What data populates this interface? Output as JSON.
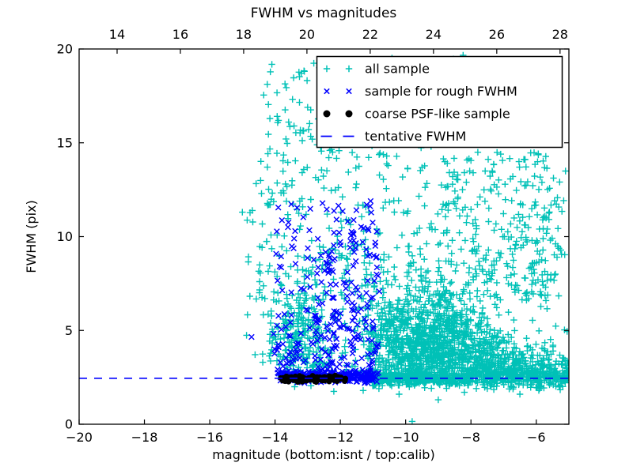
{
  "title": "FWHM vs magnitudes",
  "axes": {
    "xlabel": "magnitude (bottom:isnt / top:calib)",
    "ylabel": "FWHM (pix)",
    "x_ticks": [
      "−20",
      "−18",
      "−16",
      "−14",
      "−12",
      "−10",
      "−8",
      "−6"
    ],
    "x_tick_values": [
      -20,
      -18,
      -16,
      -14,
      -12,
      -10,
      -8,
      -6
    ],
    "top_ticks": [
      "14",
      "16",
      "18",
      "20",
      "22",
      "24",
      "26",
      "28"
    ],
    "top_tick_values": [
      14,
      16,
      18,
      20,
      22,
      24,
      26,
      28
    ],
    "toplim": [
      12.8,
      28.28
    ],
    "y_ticks": [
      "0",
      "5",
      "10",
      "15",
      "20"
    ],
    "y_tick_values": [
      0,
      5,
      10,
      15,
      20
    ]
  },
  "legend": {
    "entries": [
      {
        "label": "all sample",
        "marker": "plus",
        "color": "#00C1B7"
      },
      {
        "label": "sample for rough FWHM",
        "marker": "x",
        "color": "#0000FF"
      },
      {
        "label": "coarse PSF-like sample",
        "marker": "dot",
        "color": "#000000"
      },
      {
        "label": "tentative FWHM",
        "marker": "dashed-line",
        "color": "#0000FF"
      }
    ]
  },
  "colors": {
    "cyan": "#00C1B7",
    "blue": "#0000FF",
    "black": "#000000",
    "axis": "#000000",
    "background": "#FFFFFF"
  },
  "chart_data": {
    "type": "scatter",
    "title": "FWHM vs magnitudes",
    "xlabel": "magnitude (bottom:isnt / top:calib)",
    "ylabel": "FWHM (pix)",
    "xlim": [
      -20,
      -5
    ],
    "ylim": [
      0,
      20
    ],
    "top_axis_lim": [
      12.8,
      28.28
    ],
    "grid": false,
    "legend_position": "upper right",
    "tentative_fwhm": 2.45,
    "series": [
      {
        "name": "all sample",
        "marker": "plus",
        "color": "#00C1B7",
        "approx_count": 3300,
        "clusters": [
          {
            "kind": "box",
            "n": 90,
            "x": [
              -14.6,
              -7.2
            ],
            "y": [
              14.5,
              19.9
            ]
          },
          {
            "kind": "box",
            "n": 200,
            "x": [
              -14.6,
              -5.1
            ],
            "y": [
              9.5,
              14.5
            ]
          },
          {
            "kind": "box",
            "n": 260,
            "x": [
              -14.6,
              -5.05
            ],
            "y": [
              6.5,
              9.5
            ]
          },
          {
            "kind": "box",
            "n": 40,
            "x": [
              -14.3,
              -12.6
            ],
            "y": [
              9.0,
              19.5
            ]
          },
          {
            "kind": "box",
            "n": 10,
            "x": [
              -15.1,
              -14.6
            ],
            "y": [
              3.0,
              11.5
            ]
          },
          {
            "kind": "gauss",
            "n": 950,
            "cx": -9.4,
            "cy": 4.3,
            "sx": 1.15,
            "sy": 1.4,
            "clipx": [
              -12.2,
              -5.05
            ],
            "clipy": [
              2.55,
              12
            ]
          },
          {
            "kind": "gauss",
            "n": 330,
            "cx": -8.0,
            "cy": 3.3,
            "sx": 1.3,
            "sy": 0.9,
            "clipx": [
              -11.0,
              -5.05
            ],
            "clipy": [
              2.5,
              8
            ]
          },
          {
            "kind": "gauss",
            "n": 260,
            "cx": -13.25,
            "cy": 4.3,
            "sx": 0.55,
            "sy": 1.4,
            "clipx": [
              -14.4,
              -12.2
            ],
            "clipy": [
              2.55,
              9
            ]
          },
          {
            "kind": "band",
            "n": 420,
            "x": [
              -11.05,
              -8.0
            ],
            "ymean": 2.45,
            "ysd": 0.2,
            "clipy": [
              1.9,
              3.3
            ]
          },
          {
            "kind": "band",
            "n": 280,
            "x": [
              -8.0,
              -5.02
            ],
            "ymean": 2.55,
            "ysd": 0.28,
            "clipy": [
              1.75,
              3.6
            ]
          },
          {
            "kind": "gauss",
            "n": 200,
            "cx": -6.3,
            "cy": 2.9,
            "sx": 1.0,
            "sy": 0.55,
            "clipx": [
              -8.2,
              -5.02
            ],
            "clipy": [
              1.8,
              5.2
            ]
          },
          {
            "kind": "box",
            "n": 120,
            "x": [
              -8.8,
              -5.6
            ],
            "y": [
              7.5,
              14.5
            ]
          },
          {
            "kind": "box",
            "n": 25,
            "x": [
              -6.2,
              -5.05
            ],
            "y": [
              3.5,
              13.0
            ]
          },
          {
            "kind": "points",
            "pts": [
              [
                -12.9,
                2.05
              ],
              [
                -10.2,
                1.6
              ],
              [
                -9.8,
                0.15
              ],
              [
                -8.2,
                1.7
              ],
              [
                -7.3,
                1.85
              ],
              [
                -6.5,
                1.6
              ],
              [
                -5.9,
                1.9
              ],
              [
                -11.3,
                1.8
              ],
              [
                -13.4,
                2.0
              ],
              [
                -9.0,
                1.3
              ],
              [
                -12.2,
                1.75
              ],
              [
                -14.38,
                3.74
              ],
              [
                -15.0,
                11.3
              ]
            ]
          }
        ]
      },
      {
        "name": "sample for rough FWHM",
        "marker": "x",
        "color": "#0000FF",
        "approx_count": 570,
        "clusters": [
          {
            "kind": "band",
            "n": 240,
            "x": [
              -13.92,
              -10.88
            ],
            "ymean": 2.5,
            "ysd": 0.13,
            "clipy": [
              2.15,
              2.95
            ]
          },
          {
            "kind": "wedge",
            "n": 200,
            "x": [
              -14.05,
              -10.85
            ],
            "y": [
              2.7,
              12.0
            ],
            "pow": 2.0
          },
          {
            "kind": "col",
            "n": 38,
            "cx": -12.25,
            "sx": 0.1,
            "y": [
              2.8,
              11.9
            ],
            "pow": 1.2
          },
          {
            "kind": "col",
            "n": 28,
            "cx": -11.6,
            "sx": 0.09,
            "y": [
              2.8,
              11.6
            ],
            "pow": 1.2
          },
          {
            "kind": "col",
            "n": 16,
            "cx": -12.7,
            "sx": 0.08,
            "y": [
              2.8,
              9.5
            ],
            "pow": 1.2
          },
          {
            "kind": "col",
            "n": 26,
            "cx": -11.0,
            "sx": 0.14,
            "y": [
              2.7,
              11.0
            ],
            "pow": 1.4
          },
          {
            "kind": "points",
            "pts": [
              [
                -14.72,
                4.65
              ]
            ]
          }
        ]
      },
      {
        "name": "coarse PSF-like sample",
        "marker": "dot",
        "color": "#000000",
        "approx_count": 150,
        "clusters": [
          {
            "kind": "band",
            "n": 150,
            "x": [
              -13.87,
              -11.83
            ],
            "ymean": 2.42,
            "ysd": 0.08,
            "clipy": [
              2.25,
              2.6
            ]
          }
        ]
      },
      {
        "name": "tentative FWHM",
        "marker": "dashed-line",
        "type": "hline",
        "color": "#0000FF",
        "style": "dashed",
        "y": 2.45,
        "x": [
          -20,
          -5
        ]
      }
    ]
  }
}
